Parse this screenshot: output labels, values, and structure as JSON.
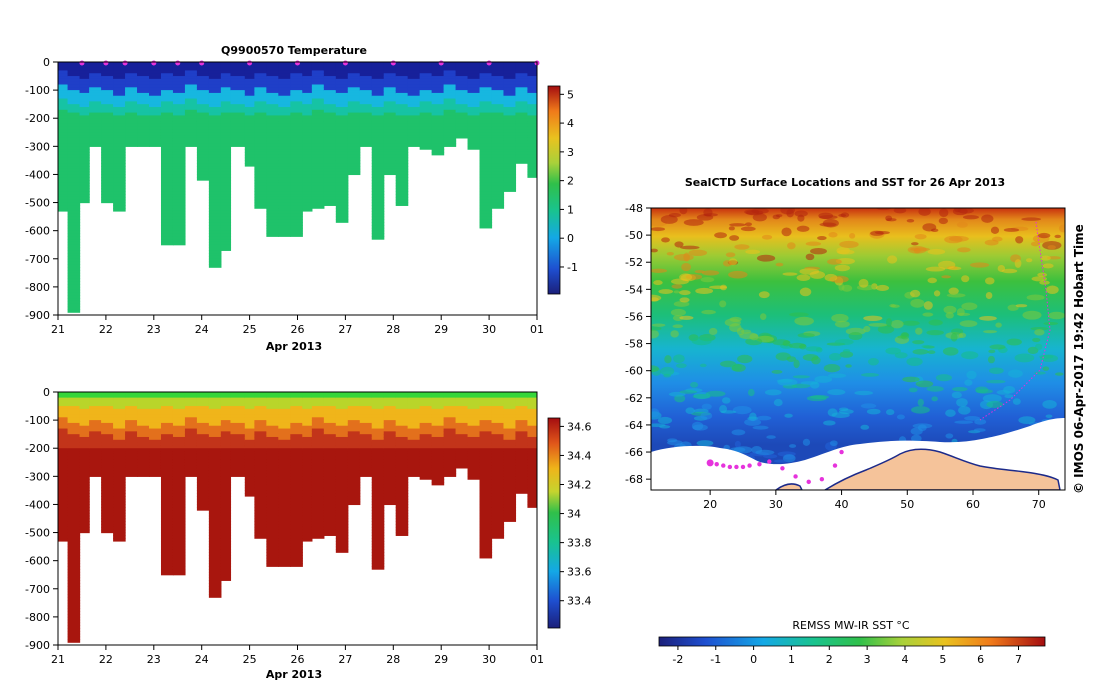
{
  "chart_data": [
    {
      "id": "temperature",
      "type": "heatmap",
      "title": "Q9900570  Temperature",
      "xlabel": "Apr 2013",
      "xticks": [
        "21",
        "22",
        "23",
        "24",
        "25",
        "26",
        "27",
        "28",
        "29",
        "30",
        "01"
      ],
      "yticks": [
        "0",
        "-100",
        "-200",
        "-300",
        "-400",
        "-500",
        "-600",
        "-700",
        "-800",
        "-900"
      ],
      "ylim": [
        -900,
        0
      ],
      "colorbar": {
        "min": -2,
        "max": 5,
        "ticks": [
          "5",
          "4",
          "3",
          "2",
          "1",
          "0",
          "-1"
        ]
      },
      "profile_days": [
        21.0,
        21.2,
        21.45,
        21.65,
        21.9,
        22.15,
        22.4,
        22.65,
        22.9,
        23.15,
        23.4,
        23.65,
        23.9,
        24.15,
        24.4,
        24.6,
        24.9,
        25.1,
        25.35,
        25.6,
        25.85,
        26.1,
        26.3,
        26.55,
        26.8,
        27.05,
        27.3,
        27.55,
        27.8,
        28.05,
        28.3,
        28.55,
        28.8,
        29.05,
        29.3,
        29.55,
        29.8,
        30.05,
        30.3,
        30.55,
        30.8,
        31.0
      ],
      "profile_depths": [
        530,
        890,
        500,
        300,
        500,
        530,
        300,
        300,
        300,
        650,
        650,
        300,
        420,
        730,
        670,
        300,
        370,
        520,
        620,
        620,
        620,
        530,
        520,
        510,
        570,
        400,
        300,
        630,
        400,
        510,
        300,
        310,
        330,
        300,
        270,
        310,
        590,
        520,
        460,
        360,
        410,
        300
      ],
      "surface_markers_days": [
        21.5,
        22.0,
        22.4,
        23.0,
        23.5,
        24.0,
        25.0,
        26.0,
        27.0,
        28.0,
        29.0,
        30.0,
        31.0
      ]
    },
    {
      "id": "salinity",
      "type": "heatmap",
      "title": "",
      "xlabel": "Apr 2013",
      "xticks": [
        "21",
        "22",
        "23",
        "24",
        "25",
        "26",
        "27",
        "28",
        "29",
        "30",
        "01"
      ],
      "yticks": [
        "0",
        "-100",
        "-200",
        "-300",
        "-400",
        "-500",
        "-600",
        "-700",
        "-800",
        "-900"
      ],
      "ylim": [
        -900,
        0
      ],
      "colorbar": {
        "min": 33.25,
        "max": 34.7,
        "ticks": [
          "34.6",
          "34.4",
          "34.2",
          "34",
          "33.8",
          "33.6",
          "33.4"
        ]
      }
    },
    {
      "id": "sst_map",
      "type": "heatmap",
      "title": "SealCTD Surface Locations and SST for 26 Apr 2013",
      "xticks": [
        "20",
        "30",
        "40",
        "50",
        "60",
        "70"
      ],
      "yticks": [
        "-48",
        "-50",
        "-52",
        "-54",
        "-56",
        "-58",
        "-60",
        "-62",
        "-64",
        "-66",
        "-68"
      ],
      "xlim": [
        11,
        74
      ],
      "ylim": [
        -68.8,
        -48
      ],
      "colorbar": {
        "label": "REMSS MW-IR SST °C",
        "min": -2.5,
        "max": 7.7,
        "ticks": [
          "-2",
          "-1",
          "0",
          "1",
          "2",
          "3",
          "4",
          "5",
          "6",
          "7"
        ]
      },
      "track": {
        "lons": [
          20.0,
          21.0,
          22.0,
          23.0,
          24.0,
          25.0,
          26.0,
          27.5,
          29.0,
          31.0,
          33.0,
          35.0,
          37.0,
          39.0,
          40.0
        ],
        "lats": [
          -66.8,
          -66.9,
          -67.0,
          -67.1,
          -67.1,
          -67.1,
          -67.0,
          -66.9,
          -66.7,
          -67.2,
          -67.8,
          -68.2,
          -68.0,
          -67.0,
          -66.0
        ]
      },
      "side_label": "© IMOS 06-Apr-2017 19:42 Hobart Time"
    }
  ]
}
